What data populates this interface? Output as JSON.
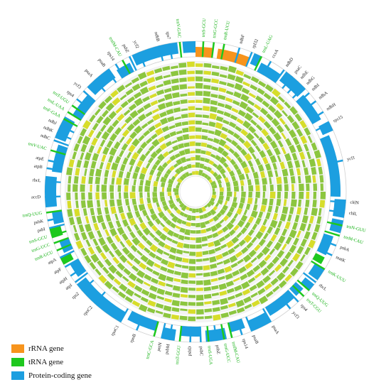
{
  "legend": [
    {
      "label": "rRNA gene",
      "type": "rrna",
      "color": "#f7941d"
    },
    {
      "label": "tRNA gene",
      "type": "trna",
      "color": "#1ec81e"
    },
    {
      "label": "Protein-coding gene",
      "type": "protein",
      "color": "#1c9fe0"
    }
  ],
  "colors": {
    "ring_green": "#8cc63f",
    "ring_yellow": "#d7dd2a",
    "ring_stroke": "#e8e8e8"
  },
  "genes": [
    {
      "name": "trnS-GCU",
      "angle": 3,
      "type": "trna"
    },
    {
      "name": "trnG-GCC",
      "angle": 7,
      "type": "trna"
    },
    {
      "name": "trnR-UCU",
      "angle": 11,
      "type": "trna"
    },
    {
      "name": "ndhF",
      "angle": 17,
      "type": "protein"
    },
    {
      "name": "rpl32",
      "angle": 22,
      "type": "protein"
    },
    {
      "name": "trnL-UAG",
      "angle": 26,
      "type": "trna"
    },
    {
      "name": "ccsA",
      "angle": 30,
      "type": "protein"
    },
    {
      "name": "ndhD",
      "angle": 36,
      "type": "protein"
    },
    {
      "name": "psaC",
      "angle": 40,
      "type": "protein"
    },
    {
      "name": "ndhE",
      "angle": 43,
      "type": "protein"
    },
    {
      "name": "ndhG",
      "angle": 46,
      "type": "protein"
    },
    {
      "name": "ndhI",
      "angle": 49,
      "type": "protein"
    },
    {
      "name": "ndhA",
      "angle": 53,
      "type": "protein"
    },
    {
      "name": "ndhH",
      "angle": 58,
      "type": "protein"
    },
    {
      "name": "rps15",
      "angle": 63,
      "type": "protein"
    },
    {
      "name": "ycf1",
      "angle": 78,
      "type": "protein"
    },
    {
      "name": "chlN",
      "angle": 94,
      "type": "protein"
    },
    {
      "name": "chlL",
      "angle": 98,
      "type": "protein"
    },
    {
      "name": "trnN-GUU",
      "angle": 103,
      "type": "trna"
    },
    {
      "name": "trnM-CAU",
      "angle": 107,
      "type": "trna"
    },
    {
      "name": "psbA",
      "angle": 111,
      "type": "protein"
    },
    {
      "name": "matK",
      "angle": 115,
      "type": "protein"
    },
    {
      "name": "trnK-UUU",
      "angle": 121,
      "type": "trna"
    },
    {
      "name": "rbcL",
      "angle": 127,
      "type": "protein"
    },
    {
      "name": "trnQ-UUG",
      "angle": 131,
      "type": "trna"
    },
    {
      "name": "trnT-CGU",
      "angle": 134,
      "type": "trna"
    },
    {
      "name": "rps4",
      "angle": 137,
      "type": "protein"
    },
    {
      "name": "ycf3",
      "angle": 141,
      "type": "protein"
    },
    {
      "name": "psaA",
      "angle": 150,
      "type": "protein"
    },
    {
      "name": "psaB",
      "angle": 158,
      "type": "protein"
    },
    {
      "name": "rps14",
      "angle": 162,
      "type": "protein"
    },
    {
      "name": "trnfM-CAU",
      "angle": 166,
      "type": "trna"
    },
    {
      "name": "trnG-UCC",
      "angle": 169,
      "type": "trna"
    },
    {
      "name": "psbZ",
      "angle": 172,
      "type": "protein"
    },
    {
      "name": "trnS-UGA",
      "angle": 175,
      "type": "trna"
    },
    {
      "name": "psbC",
      "angle": 178,
      "type": "protein"
    },
    {
      "name": "psbD",
      "angle": 182,
      "type": "protein"
    },
    {
      "name": "trnT-GGU",
      "angle": 186,
      "type": "trna"
    },
    {
      "name": "psbM",
      "angle": 190,
      "type": "protein"
    },
    {
      "name": "petN",
      "angle": 193,
      "type": "protein"
    },
    {
      "name": "trnC-GCA",
      "angle": 196,
      "type": "trna"
    },
    {
      "name": "rpoB",
      "angle": 203,
      "type": "protein"
    },
    {
      "name": "rpoC1",
      "angle": 210,
      "type": "protein"
    },
    {
      "name": "rpoC2",
      "angle": 222,
      "type": "protein"
    },
    {
      "name": "rps2",
      "angle": 229,
      "type": "protein"
    },
    {
      "name": "atpI",
      "angle": 233,
      "type": "protein"
    },
    {
      "name": "atpH",
      "angle": 236,
      "type": "protein"
    },
    {
      "name": "atpF",
      "angle": 240,
      "type": "protein"
    },
    {
      "name": "atpA",
      "angle": 244,
      "type": "protein"
    },
    {
      "name": "trnR-UCU",
      "angle": 247,
      "type": "trna"
    },
    {
      "name": "trnG-UCC",
      "angle": 250,
      "type": "trna"
    },
    {
      "name": "trnS-GCU",
      "angle": 253,
      "type": "trna"
    },
    {
      "name": "psbI",
      "angle": 256,
      "type": "protein"
    },
    {
      "name": "psbK",
      "angle": 259,
      "type": "protein"
    },
    {
      "name": "trnQ-UUG",
      "angle": 262,
      "type": "trna"
    },
    {
      "name": "accD",
      "angle": 268,
      "type": "protein"
    },
    {
      "name": "rbcL",
      "angle": 274,
      "type": "protein"
    },
    {
      "name": "atpB",
      "angle": 279,
      "type": "protein"
    },
    {
      "name": "atpE",
      "angle": 282,
      "type": "protein"
    },
    {
      "name": "trnV-UAC",
      "angle": 286,
      "type": "trna"
    },
    {
      "name": "ndhC",
      "angle": 290,
      "type": "protein"
    },
    {
      "name": "ndhK",
      "angle": 293,
      "type": "protein"
    },
    {
      "name": "ndhJ",
      "angle": 296,
      "type": "protein"
    },
    {
      "name": "trnF-GAA",
      "angle": 299,
      "type": "trna"
    },
    {
      "name": "trnL-UAA",
      "angle": 302,
      "type": "trna"
    },
    {
      "name": "trnT-UGU",
      "angle": 305,
      "type": "trna"
    },
    {
      "name": "rps4",
      "angle": 308,
      "type": "protein"
    },
    {
      "name": "ycf3",
      "angle": 312,
      "type": "protein"
    },
    {
      "name": "psaA",
      "angle": 318,
      "type": "protein"
    },
    {
      "name": "psaB",
      "angle": 324,
      "type": "protein"
    },
    {
      "name": "rps14",
      "angle": 328,
      "type": "protein"
    },
    {
      "name": "trnfM-CAU",
      "angle": 331,
      "type": "trna"
    },
    {
      "name": "psbZ",
      "angle": 334,
      "type": "protein"
    },
    {
      "name": "ycf2",
      "angle": 338,
      "type": "protein"
    },
    {
      "name": "ndhB",
      "angle": 346,
      "type": "protein"
    },
    {
      "name": "rps7",
      "angle": 350,
      "type": "protein"
    },
    {
      "name": "trnV-GAC",
      "angle": 354,
      "type": "trna"
    }
  ],
  "blocks": [
    {
      "start": 355,
      "end": 360,
      "type": "protein",
      "row": 0
    },
    {
      "start": 0,
      "end": 7,
      "type": "rrna",
      "row": 1
    },
    {
      "start": 9,
      "end": 22,
      "type": "rrna",
      "row": 1
    },
    {
      "start": 23,
      "end": 26,
      "type": "protein",
      "row": 0
    },
    {
      "start": 27,
      "end": 36,
      "type": "protein",
      "row": 1
    },
    {
      "start": 37,
      "end": 47,
      "type": "protein",
      "row": 0
    },
    {
      "start": 48,
      "end": 60,
      "type": "protein",
      "row": 1
    },
    {
      "start": 62,
      "end": 66,
      "type": "protein",
      "row": 0
    },
    {
      "start": 67,
      "end": 92,
      "type": "protein",
      "row": 1
    },
    {
      "start": 93,
      "end": 100,
      "type": "protein",
      "row": 0
    },
    {
      "start": 101,
      "end": 106,
      "type": "protein",
      "row": 0
    },
    {
      "start": 108,
      "end": 116,
      "type": "protein",
      "row": 1
    },
    {
      "start": 117,
      "end": 120,
      "type": "trna",
      "row": 1
    },
    {
      "start": 121,
      "end": 126,
      "type": "protein",
      "row": 0
    },
    {
      "start": 128,
      "end": 131,
      "type": "protein",
      "row": 0
    },
    {
      "start": 132,
      "end": 136,
      "type": "protein",
      "row": 1
    },
    {
      "start": 137,
      "end": 149,
      "type": "protein",
      "row": 1
    },
    {
      "start": 150,
      "end": 158,
      "type": "protein",
      "row": 0
    },
    {
      "start": 160,
      "end": 166,
      "type": "protein",
      "row": 1
    },
    {
      "start": 168,
      "end": 176,
      "type": "protein",
      "row": 0
    },
    {
      "start": 178,
      "end": 186,
      "type": "protein",
      "row": 1
    },
    {
      "start": 188,
      "end": 193,
      "type": "protein",
      "row": 0
    },
    {
      "start": 196,
      "end": 208,
      "type": "protein",
      "row": 1
    },
    {
      "start": 210,
      "end": 232,
      "type": "protein",
      "row": 0
    },
    {
      "start": 234,
      "end": 240,
      "type": "protein",
      "row": 1
    },
    {
      "start": 241,
      "end": 244,
      "type": "trna",
      "row": 0
    },
    {
      "start": 245,
      "end": 250,
      "type": "protein",
      "row": 1
    },
    {
      "start": 252,
      "end": 256,
      "type": "trna",
      "row": 0
    },
    {
      "start": 257,
      "end": 262,
      "type": "protein",
      "row": 1
    },
    {
      "start": 264,
      "end": 276,
      "type": "protein",
      "row": 0
    },
    {
      "start": 278,
      "end": 289,
      "type": "protein",
      "row": 1
    },
    {
      "start": 291,
      "end": 300,
      "type": "protein",
      "row": 0
    },
    {
      "start": 302,
      "end": 312,
      "type": "protein",
      "row": 1
    },
    {
      "start": 314,
      "end": 325,
      "type": "protein",
      "row": 0
    },
    {
      "start": 327,
      "end": 333,
      "type": "protein",
      "row": 1
    },
    {
      "start": 335,
      "end": 353,
      "type": "protein",
      "row": 0
    }
  ]
}
